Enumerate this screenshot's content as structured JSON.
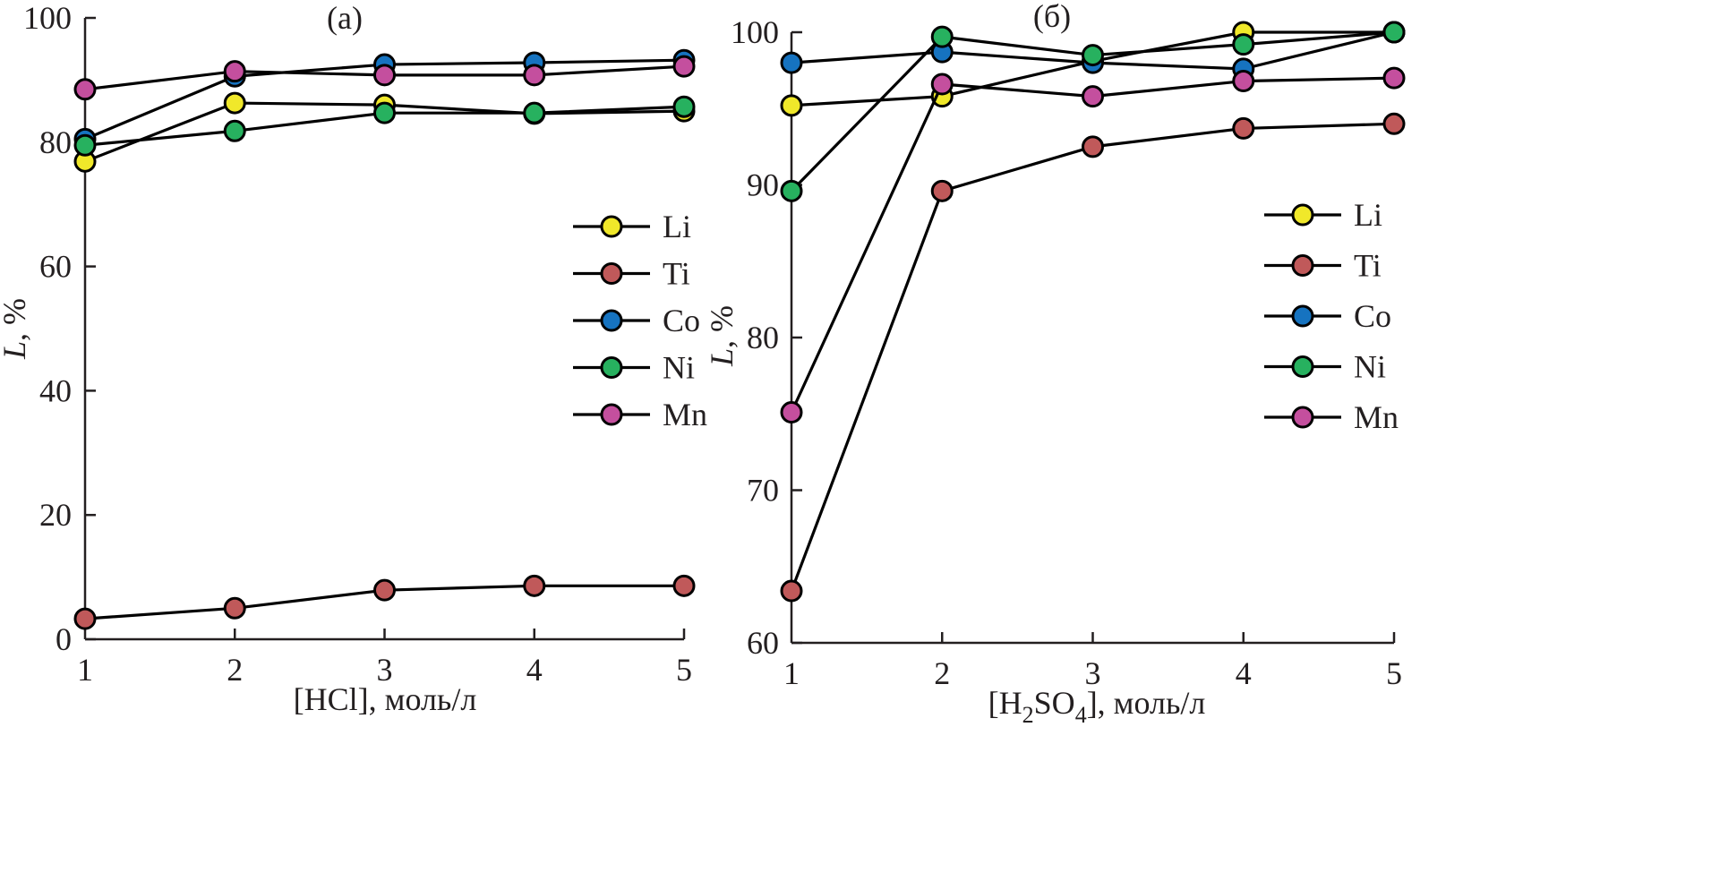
{
  "chart_data": [
    {
      "type": "line",
      "panel_label": "(a)",
      "xlabel": "[HCl], моль/л",
      "ylabel_italic": "L",
      "ylabel_rest": ", %",
      "x": [
        1,
        2,
        3,
        4,
        5
      ],
      "xticks": [
        "1",
        "2",
        "3",
        "4",
        "5"
      ],
      "yticks": [
        "0",
        "20",
        "40",
        "60",
        "80",
        "100"
      ],
      "ytick_values": [
        0,
        20,
        40,
        60,
        80,
        100
      ],
      "xlim": [
        1,
        5
      ],
      "ylim": [
        0,
        100
      ],
      "grid": false,
      "legend_position": "center-right",
      "series": [
        {
          "name": "Li",
          "color": "#f0e82a",
          "values": [
            76.9,
            86.3,
            86.0,
            84.6,
            85.0
          ]
        },
        {
          "name": "Ti",
          "color": "#c0595a",
          "values": [
            3.3,
            5.0,
            7.9,
            8.6,
            8.6
          ]
        },
        {
          "name": "Co",
          "color": "#1673c0",
          "values": [
            80.5,
            90.6,
            92.5,
            92.8,
            93.2
          ]
        },
        {
          "name": "Ni",
          "color": "#27b15f",
          "values": [
            79.5,
            81.8,
            84.7,
            84.7,
            85.7
          ]
        },
        {
          "name": "Mn",
          "color": "#c44f9e",
          "values": [
            88.5,
            91.4,
            90.8,
            90.8,
            92.2
          ]
        }
      ]
    },
    {
      "type": "line",
      "panel_label": "(б)",
      "xlabel_parts": [
        "[H",
        "2",
        "SO",
        "4",
        "], моль/л"
      ],
      "ylabel_italic": "L",
      "ylabel_rest": ", %",
      "x": [
        1,
        2,
        3,
        4,
        5
      ],
      "xticks": [
        "1",
        "2",
        "3",
        "4",
        "5"
      ],
      "yticks": [
        "60",
        "70",
        "80",
        "90",
        "100"
      ],
      "ytick_values": [
        60,
        70,
        80,
        90,
        100
      ],
      "xlim": [
        1,
        5
      ],
      "ylim": [
        60,
        100
      ],
      "grid": false,
      "legend_position": "center-right",
      "series": [
        {
          "name": "Li",
          "color": "#f0e82a",
          "values": [
            95.2,
            95.8,
            98.1,
            100.0,
            100.0
          ]
        },
        {
          "name": "Ti",
          "color": "#c0595a",
          "values": [
            63.4,
            89.6,
            92.5,
            93.7,
            94.0
          ]
        },
        {
          "name": "Co",
          "color": "#1673c0",
          "values": [
            98.0,
            98.7,
            98.0,
            97.6,
            100.0
          ]
        },
        {
          "name": "Ni",
          "color": "#27b15f",
          "values": [
            89.6,
            99.7,
            98.5,
            99.2,
            100.0
          ]
        },
        {
          "name": "Mn",
          "color": "#c44f9e",
          "values": [
            75.1,
            96.6,
            95.8,
            96.8,
            97.0
          ]
        }
      ]
    }
  ]
}
